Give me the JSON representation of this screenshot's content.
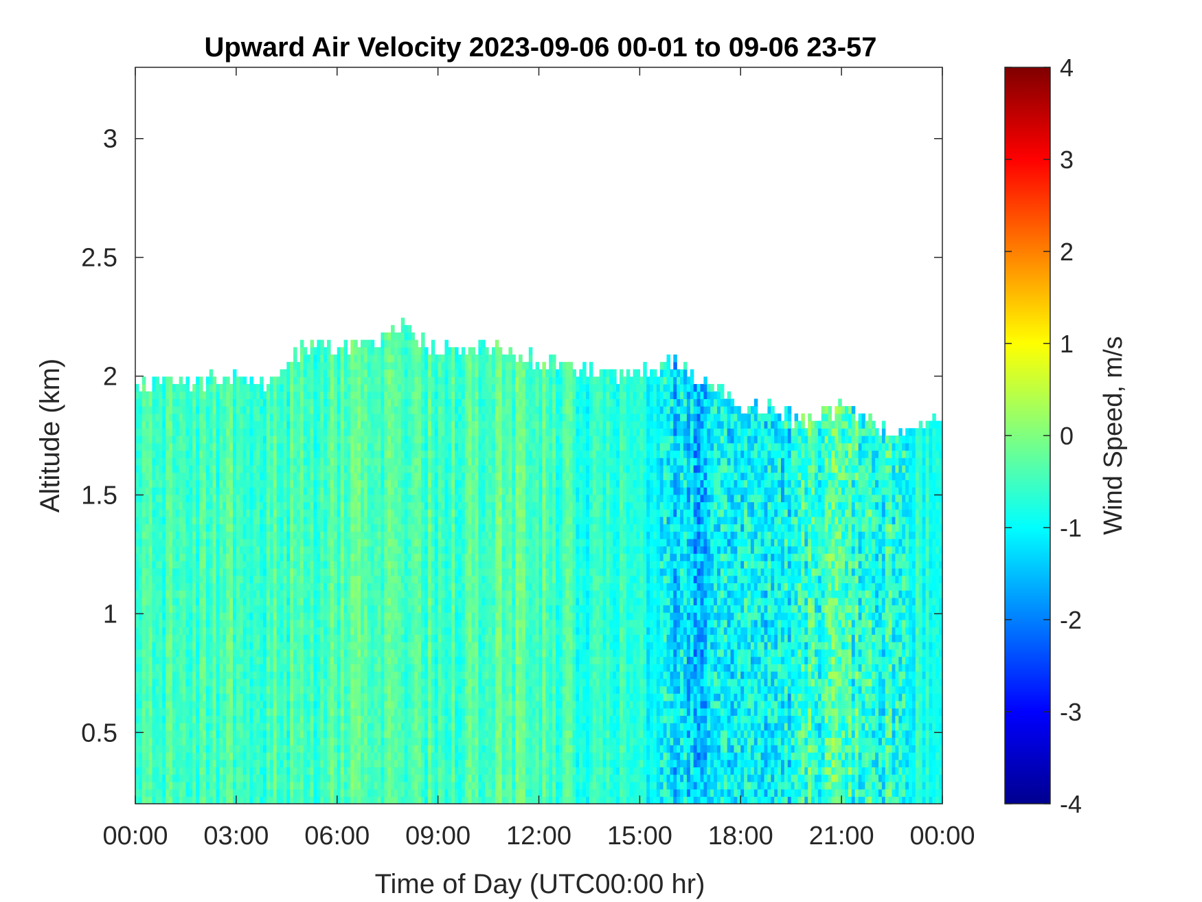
{
  "chart_data": {
    "type": "heatmap",
    "title": "Upward Air Velocity 2023-09-06 00-01 to 09-06 23-57",
    "xlabel": "Time of Day (UTC00:00 hr)",
    "ylabel": "Altitude (km)",
    "colorbar_label": "Wind Speed, m/s",
    "x_range_hours": [
      0,
      24
    ],
    "x_ticks": [
      0,
      3,
      6,
      9,
      12,
      15,
      18,
      21,
      24
    ],
    "x_tick_labels": [
      "00:00",
      "03:00",
      "06:00",
      "09:00",
      "12:00",
      "15:00",
      "18:00",
      "21:00",
      "00:00"
    ],
    "ylim": [
      0.2,
      3.3
    ],
    "y_ticks": [
      0.5,
      1,
      1.5,
      2,
      2.5,
      3
    ],
    "y_tick_labels": [
      "0.5",
      "1",
      "1.5",
      "2",
      "2.5",
      "3"
    ],
    "clim": [
      -4,
      4
    ],
    "c_ticks": [
      -4,
      -3,
      -2,
      -1,
      0,
      1,
      2,
      3,
      4
    ],
    "c_tick_labels": [
      "-4",
      "-3",
      "-2",
      "-1",
      "0",
      "1",
      "2",
      "3",
      "4"
    ],
    "colormap": "jet",
    "grid": false,
    "data_top_altitude_km": [
      {
        "hour": 0.0,
        "km": 1.95
      },
      {
        "hour": 1.0,
        "km": 1.95
      },
      {
        "hour": 2.0,
        "km": 1.96
      },
      {
        "hour": 3.0,
        "km": 2.0
      },
      {
        "hour": 4.0,
        "km": 1.95
      },
      {
        "hour": 5.0,
        "km": 2.12
      },
      {
        "hour": 6.0,
        "km": 2.1
      },
      {
        "hour": 7.0,
        "km": 2.12
      },
      {
        "hour": 8.0,
        "km": 2.2
      },
      {
        "hour": 9.0,
        "km": 2.1
      },
      {
        "hour": 10.0,
        "km": 2.1
      },
      {
        "hour": 11.0,
        "km": 2.1
      },
      {
        "hour": 12.0,
        "km": 2.05
      },
      {
        "hour": 13.0,
        "km": 2.03
      },
      {
        "hour": 14.0,
        "km": 2.0
      },
      {
        "hour": 15.0,
        "km": 2.0
      },
      {
        "hour": 16.0,
        "km": 2.05
      },
      {
        "hour": 17.0,
        "km": 1.95
      },
      {
        "hour": 18.0,
        "km": 1.85
      },
      {
        "hour": 19.0,
        "km": 1.85
      },
      {
        "hour": 20.0,
        "km": 1.78
      },
      {
        "hour": 21.0,
        "km": 1.85
      },
      {
        "hour": 22.0,
        "km": 1.78
      },
      {
        "hour": 23.0,
        "km": 1.75
      },
      {
        "hour": 24.0,
        "km": 1.8
      }
    ],
    "velocity_profile_by_hour": [
      {
        "hour": 0,
        "mean_ms": -0.5
      },
      {
        "hour": 1,
        "mean_ms": -0.5
      },
      {
        "hour": 2,
        "mean_ms": -0.5
      },
      {
        "hour": 3,
        "mean_ms": -0.4
      },
      {
        "hour": 4,
        "mean_ms": -0.5
      },
      {
        "hour": 5,
        "mean_ms": -0.5
      },
      {
        "hour": 6,
        "mean_ms": -0.4
      },
      {
        "hour": 7,
        "mean_ms": -0.4
      },
      {
        "hour": 8,
        "mean_ms": -0.4
      },
      {
        "hour": 9,
        "mean_ms": -0.5
      },
      {
        "hour": 10,
        "mean_ms": -0.4
      },
      {
        "hour": 11,
        "mean_ms": -0.3
      },
      {
        "hour": 12,
        "mean_ms": -0.4
      },
      {
        "hour": 13,
        "mean_ms": -0.6
      },
      {
        "hour": 14,
        "mean_ms": -0.7
      },
      {
        "hour": 15,
        "mean_ms": -0.8
      },
      {
        "hour": 16,
        "mean_ms": -1.2
      },
      {
        "hour": 17,
        "mean_ms": -1.4
      },
      {
        "hour": 18,
        "mean_ms": -1.0
      },
      {
        "hour": 19,
        "mean_ms": -1.1
      },
      {
        "hour": 20,
        "mean_ms": -0.6
      },
      {
        "hour": 21,
        "mean_ms": -0.5
      },
      {
        "hour": 22,
        "mean_ms": -0.7
      },
      {
        "hour": 23,
        "mean_ms": -0.8
      }
    ]
  }
}
